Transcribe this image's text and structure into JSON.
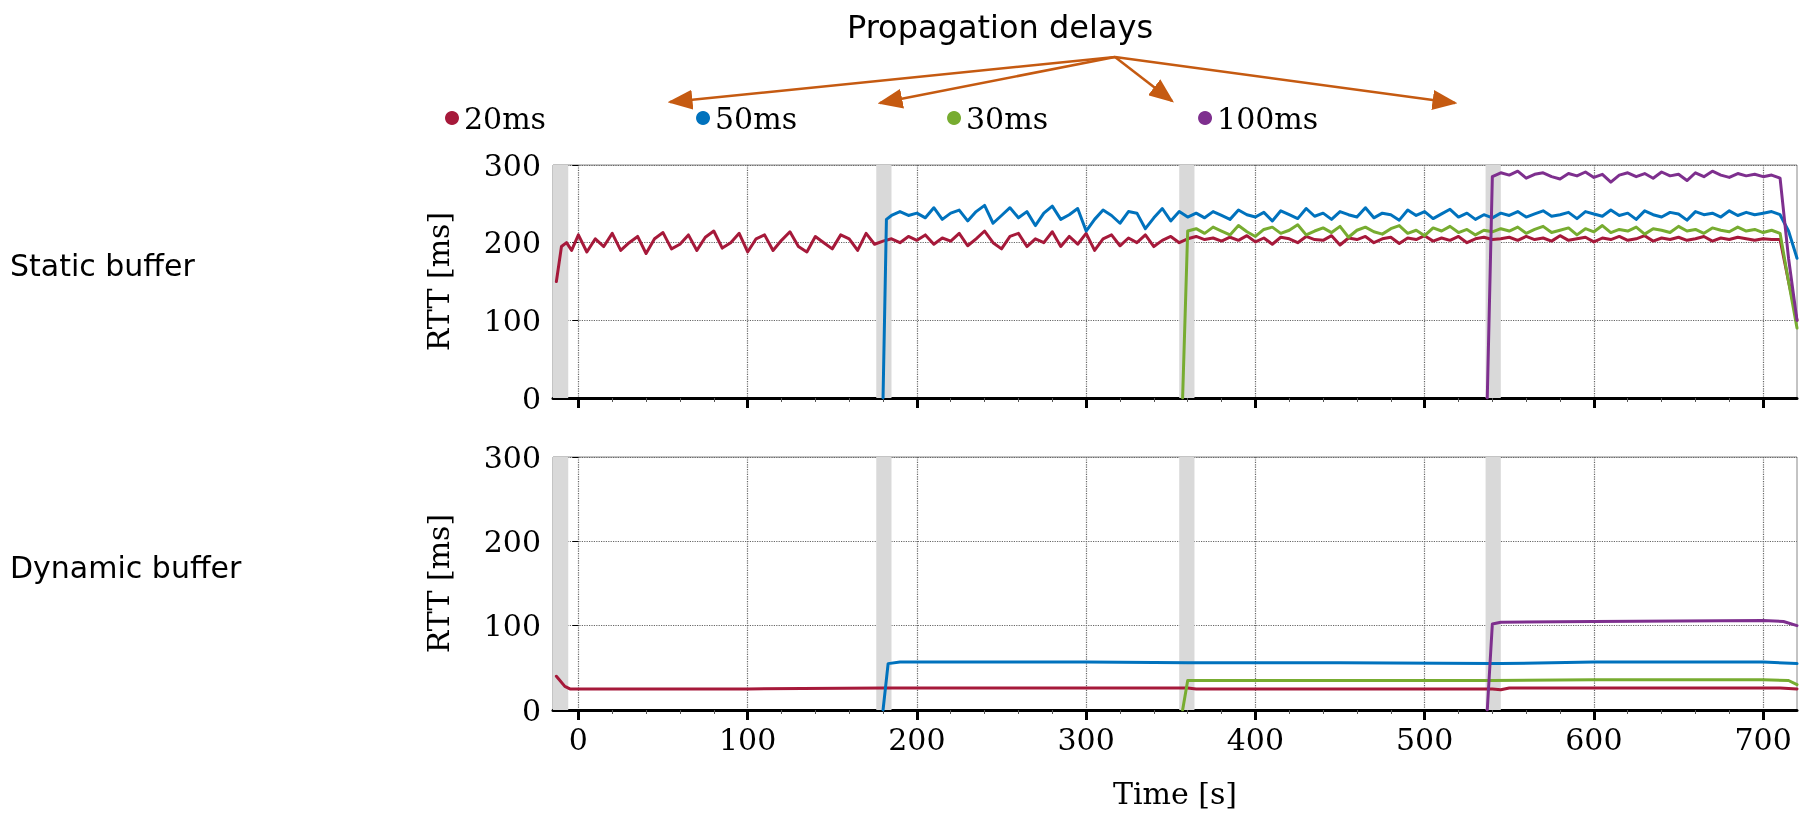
{
  "chart_data": [
    {
      "type": "line",
      "ylabel": "RTT [ms]",
      "annotations": [
        "Propagation delays",
        "Static buffer"
      ],
      "xlim": [
        -15,
        720
      ],
      "xticks": [
        0,
        100,
        200,
        300,
        400,
        500,
        600,
        700
      ],
      "ylim": [
        0,
        300
      ],
      "yticks": [
        0,
        100,
        200,
        300
      ],
      "grid": true,
      "legend": "top",
      "tick_labels": "y",
      "marker": "none",
      "line_style": "solid",
      "bands": [
        {
          "axis": "x",
          "from": -15,
          "to": -6,
          "color": "#d9d9d9"
        },
        {
          "axis": "x",
          "from": 176,
          "to": 185,
          "color": "#d9d9d9"
        },
        {
          "axis": "x",
          "from": 355,
          "to": 364,
          "color": "#d9d9d9"
        },
        {
          "axis": "x",
          "from": 536,
          "to": 545,
          "color": "#d9d9d9"
        }
      ],
      "series": [
        {
          "name": "20ms",
          "color": "#a6193a",
          "x": [
            -13,
            -10,
            -7,
            -4,
            0,
            5,
            10,
            15,
            20,
            25,
            30,
            35,
            40,
            45,
            50,
            55,
            60,
            65,
            70,
            75,
            80,
            85,
            90,
            95,
            100,
            105,
            110,
            115,
            120,
            125,
            130,
            135,
            140,
            145,
            150,
            155,
            160,
            165,
            170,
            175,
            180,
            185,
            190,
            195,
            200,
            205,
            210,
            215,
            220,
            225,
            230,
            235,
            240,
            245,
            250,
            255,
            260,
            265,
            270,
            275,
            280,
            285,
            290,
            295,
            300,
            305,
            310,
            315,
            320,
            325,
            330,
            335,
            340,
            345,
            350,
            355,
            360,
            365,
            370,
            375,
            380,
            385,
            390,
            395,
            400,
            405,
            410,
            415,
            420,
            425,
            430,
            435,
            440,
            445,
            450,
            455,
            460,
            465,
            470,
            475,
            480,
            485,
            490,
            495,
            500,
            505,
            510,
            515,
            520,
            525,
            530,
            535,
            540,
            545,
            550,
            555,
            560,
            565,
            570,
            575,
            580,
            585,
            590,
            595,
            600,
            605,
            610,
            615,
            620,
            625,
            630,
            635,
            640,
            645,
            650,
            655,
            660,
            665,
            670,
            675,
            680,
            685,
            690,
            695,
            700,
            705,
            710,
            715,
            720
          ],
          "values": [
            150,
            195,
            200,
            190,
            210,
            188,
            205,
            195,
            212,
            190,
            200,
            208,
            186,
            205,
            213,
            192,
            198,
            210,
            190,
            207,
            215,
            193,
            200,
            212,
            188,
            205,
            210,
            190,
            203,
            214,
            195,
            188,
            208,
            200,
            192,
            210,
            205,
            190,
            212,
            198,
            202,
            205,
            200,
            208,
            203,
            210,
            198,
            206,
            202,
            212,
            196,
            205,
            215,
            200,
            192,
            208,
            212,
            195,
            205,
            200,
            214,
            195,
            208,
            198,
            212,
            190,
            205,
            210,
            196,
            206,
            200,
            210,
            195,
            203,
            208,
            200,
            205,
            208,
            204,
            206,
            202,
            207,
            203,
            209,
            201,
            206,
            198,
            207,
            205,
            200,
            208,
            204,
            203,
            209,
            197,
            206,
            204,
            208,
            200,
            205,
            207,
            199,
            206,
            204,
            209,
            202,
            206,
            203,
            208,
            200,
            205,
            207,
            204,
            205,
            207,
            203,
            208,
            204,
            206,
            202,
            209,
            203,
            205,
            207,
            201,
            206,
            204,
            208,
            203,
            205,
            209,
            202,
            206,
            204,
            207,
            203,
            205,
            208,
            202,
            206,
            204,
            207,
            205,
            203,
            205,
            204,
            204,
            150,
            100
          ]
        },
        {
          "name": "50ms",
          "color": "#0072bd",
          "x": [
            180,
            182,
            185,
            190,
            195,
            200,
            205,
            210,
            215,
            220,
            225,
            230,
            235,
            240,
            245,
            250,
            255,
            260,
            265,
            270,
            275,
            280,
            285,
            290,
            295,
            300,
            305,
            310,
            315,
            320,
            325,
            330,
            335,
            340,
            345,
            350,
            355,
            360,
            365,
            370,
            375,
            380,
            385,
            390,
            395,
            400,
            405,
            410,
            415,
            420,
            425,
            430,
            435,
            440,
            445,
            450,
            455,
            460,
            465,
            470,
            475,
            480,
            485,
            490,
            495,
            500,
            505,
            510,
            515,
            520,
            525,
            530,
            535,
            540,
            545,
            550,
            555,
            560,
            565,
            570,
            575,
            580,
            585,
            590,
            595,
            600,
            605,
            610,
            615,
            620,
            625,
            630,
            635,
            640,
            645,
            650,
            655,
            660,
            665,
            670,
            675,
            680,
            685,
            690,
            695,
            700,
            705,
            710,
            715,
            720
          ],
          "values": [
            0,
            230,
            235,
            240,
            235,
            238,
            232,
            245,
            230,
            238,
            242,
            228,
            240,
            248,
            225,
            235,
            245,
            232,
            240,
            222,
            238,
            247,
            230,
            236,
            244,
            215,
            230,
            242,
            235,
            225,
            240,
            238,
            218,
            232,
            244,
            228,
            240,
            233,
            238,
            232,
            240,
            235,
            230,
            242,
            236,
            233,
            239,
            228,
            241,
            236,
            231,
            244,
            234,
            238,
            230,
            240,
            236,
            233,
            245,
            232,
            238,
            236,
            229,
            242,
            235,
            240,
            231,
            237,
            243,
            233,
            238,
            230,
            236,
            232,
            238,
            235,
            240,
            233,
            237,
            241,
            234,
            236,
            239,
            231,
            240,
            237,
            234,
            242,
            235,
            238,
            230,
            241,
            236,
            233,
            239,
            237,
            229,
            240,
            236,
            238,
            233,
            241,
            235,
            239,
            236,
            238,
            240,
            236,
            215,
            180
          ]
        },
        {
          "name": "30ms",
          "color": "#77ac30",
          "x": [
            357,
            360,
            365,
            370,
            375,
            380,
            385,
            390,
            395,
            400,
            405,
            410,
            415,
            420,
            425,
            430,
            435,
            440,
            445,
            450,
            455,
            460,
            465,
            470,
            475,
            480,
            485,
            490,
            495,
            500,
            505,
            510,
            515,
            520,
            525,
            530,
            535,
            540,
            545,
            550,
            555,
            560,
            565,
            570,
            575,
            580,
            585,
            590,
            595,
            600,
            605,
            610,
            615,
            620,
            625,
            630,
            635,
            640,
            645,
            650,
            655,
            660,
            665,
            670,
            675,
            680,
            685,
            690,
            695,
            700,
            705,
            710,
            715,
            720
          ],
          "values": [
            0,
            215,
            218,
            212,
            220,
            215,
            210,
            222,
            214,
            208,
            217,
            220,
            212,
            216,
            223,
            210,
            215,
            219,
            213,
            221,
            207,
            216,
            220,
            214,
            211,
            218,
            222,
            212,
            216,
            209,
            219,
            215,
            221,
            213,
            217,
            210,
            216,
            214,
            218,
            215,
            220,
            212,
            217,
            221,
            213,
            216,
            219,
            210,
            218,
            214,
            222,
            213,
            217,
            215,
            220,
            211,
            218,
            216,
            213,
            221,
            215,
            217,
            212,
            219,
            216,
            214,
            220,
            215,
            217,
            213,
            216,
            212,
            150,
            90
          ]
        },
        {
          "name": "100ms",
          "color": "#7e2f8e",
          "x": [
            537,
            540,
            545,
            550,
            555,
            560,
            565,
            570,
            575,
            580,
            585,
            590,
            595,
            600,
            605,
            610,
            615,
            620,
            625,
            630,
            635,
            640,
            645,
            650,
            655,
            660,
            665,
            670,
            675,
            680,
            685,
            690,
            695,
            700,
            705,
            710,
            715,
            720
          ],
          "values": [
            0,
            285,
            290,
            287,
            292,
            283,
            288,
            290,
            285,
            282,
            289,
            286,
            291,
            284,
            288,
            278,
            287,
            290,
            285,
            289,
            283,
            291,
            286,
            288,
            280,
            290,
            285,
            292,
            287,
            284,
            289,
            286,
            288,
            285,
            287,
            283,
            180,
            100
          ]
        }
      ]
    },
    {
      "type": "line",
      "annotations": [
        "Dynamic buffer"
      ],
      "xlabel": "Time [s]",
      "ylabel": "RTT [ms]",
      "xlim": [
        -15,
        720
      ],
      "xticks": [
        0,
        100,
        200,
        300,
        400,
        500,
        600,
        700
      ],
      "ylim": [
        0,
        300
      ],
      "yticks": [
        0,
        100,
        200,
        300
      ],
      "grid": true,
      "legend": false,
      "marker": "none",
      "line_style": "solid",
      "bands": [
        {
          "axis": "x",
          "from": -15,
          "to": -6,
          "color": "#d9d9d9"
        },
        {
          "axis": "x",
          "from": 176,
          "to": 185,
          "color": "#d9d9d9"
        },
        {
          "axis": "x",
          "from": 355,
          "to": 364,
          "color": "#d9d9d9"
        },
        {
          "axis": "x",
          "from": 536,
          "to": 545,
          "color": "#d9d9d9"
        }
      ],
      "series": [
        {
          "color": "#a6193a",
          "x": [
            -13,
            -8,
            -5,
            0,
            100,
            180,
            200,
            300,
            360,
            365,
            450,
            540,
            545,
            550,
            650,
            710,
            720
          ],
          "values": [
            40,
            28,
            25,
            25,
            25,
            26,
            26,
            26,
            26,
            25,
            25,
            25,
            24,
            26,
            26,
            26,
            25
          ]
        },
        {
          "color": "#0072bd",
          "x": [
            180,
            183,
            190,
            300,
            360,
            450,
            540,
            545,
            600,
            700,
            720
          ],
          "values": [
            0,
            55,
            57,
            57,
            56,
            56,
            55,
            55,
            57,
            57,
            55
          ]
        },
        {
          "color": "#77ac30",
          "x": [
            357,
            360,
            400,
            540,
            600,
            700,
            715,
            720
          ],
          "values": [
            0,
            35,
            35,
            35,
            36,
            36,
            35,
            30
          ]
        },
        {
          "color": "#7e2f8e",
          "x": [
            537,
            540,
            545,
            600,
            700,
            712,
            720
          ],
          "values": [
            0,
            102,
            104,
            105,
            106,
            105,
            100
          ]
        }
      ]
    }
  ]
}
